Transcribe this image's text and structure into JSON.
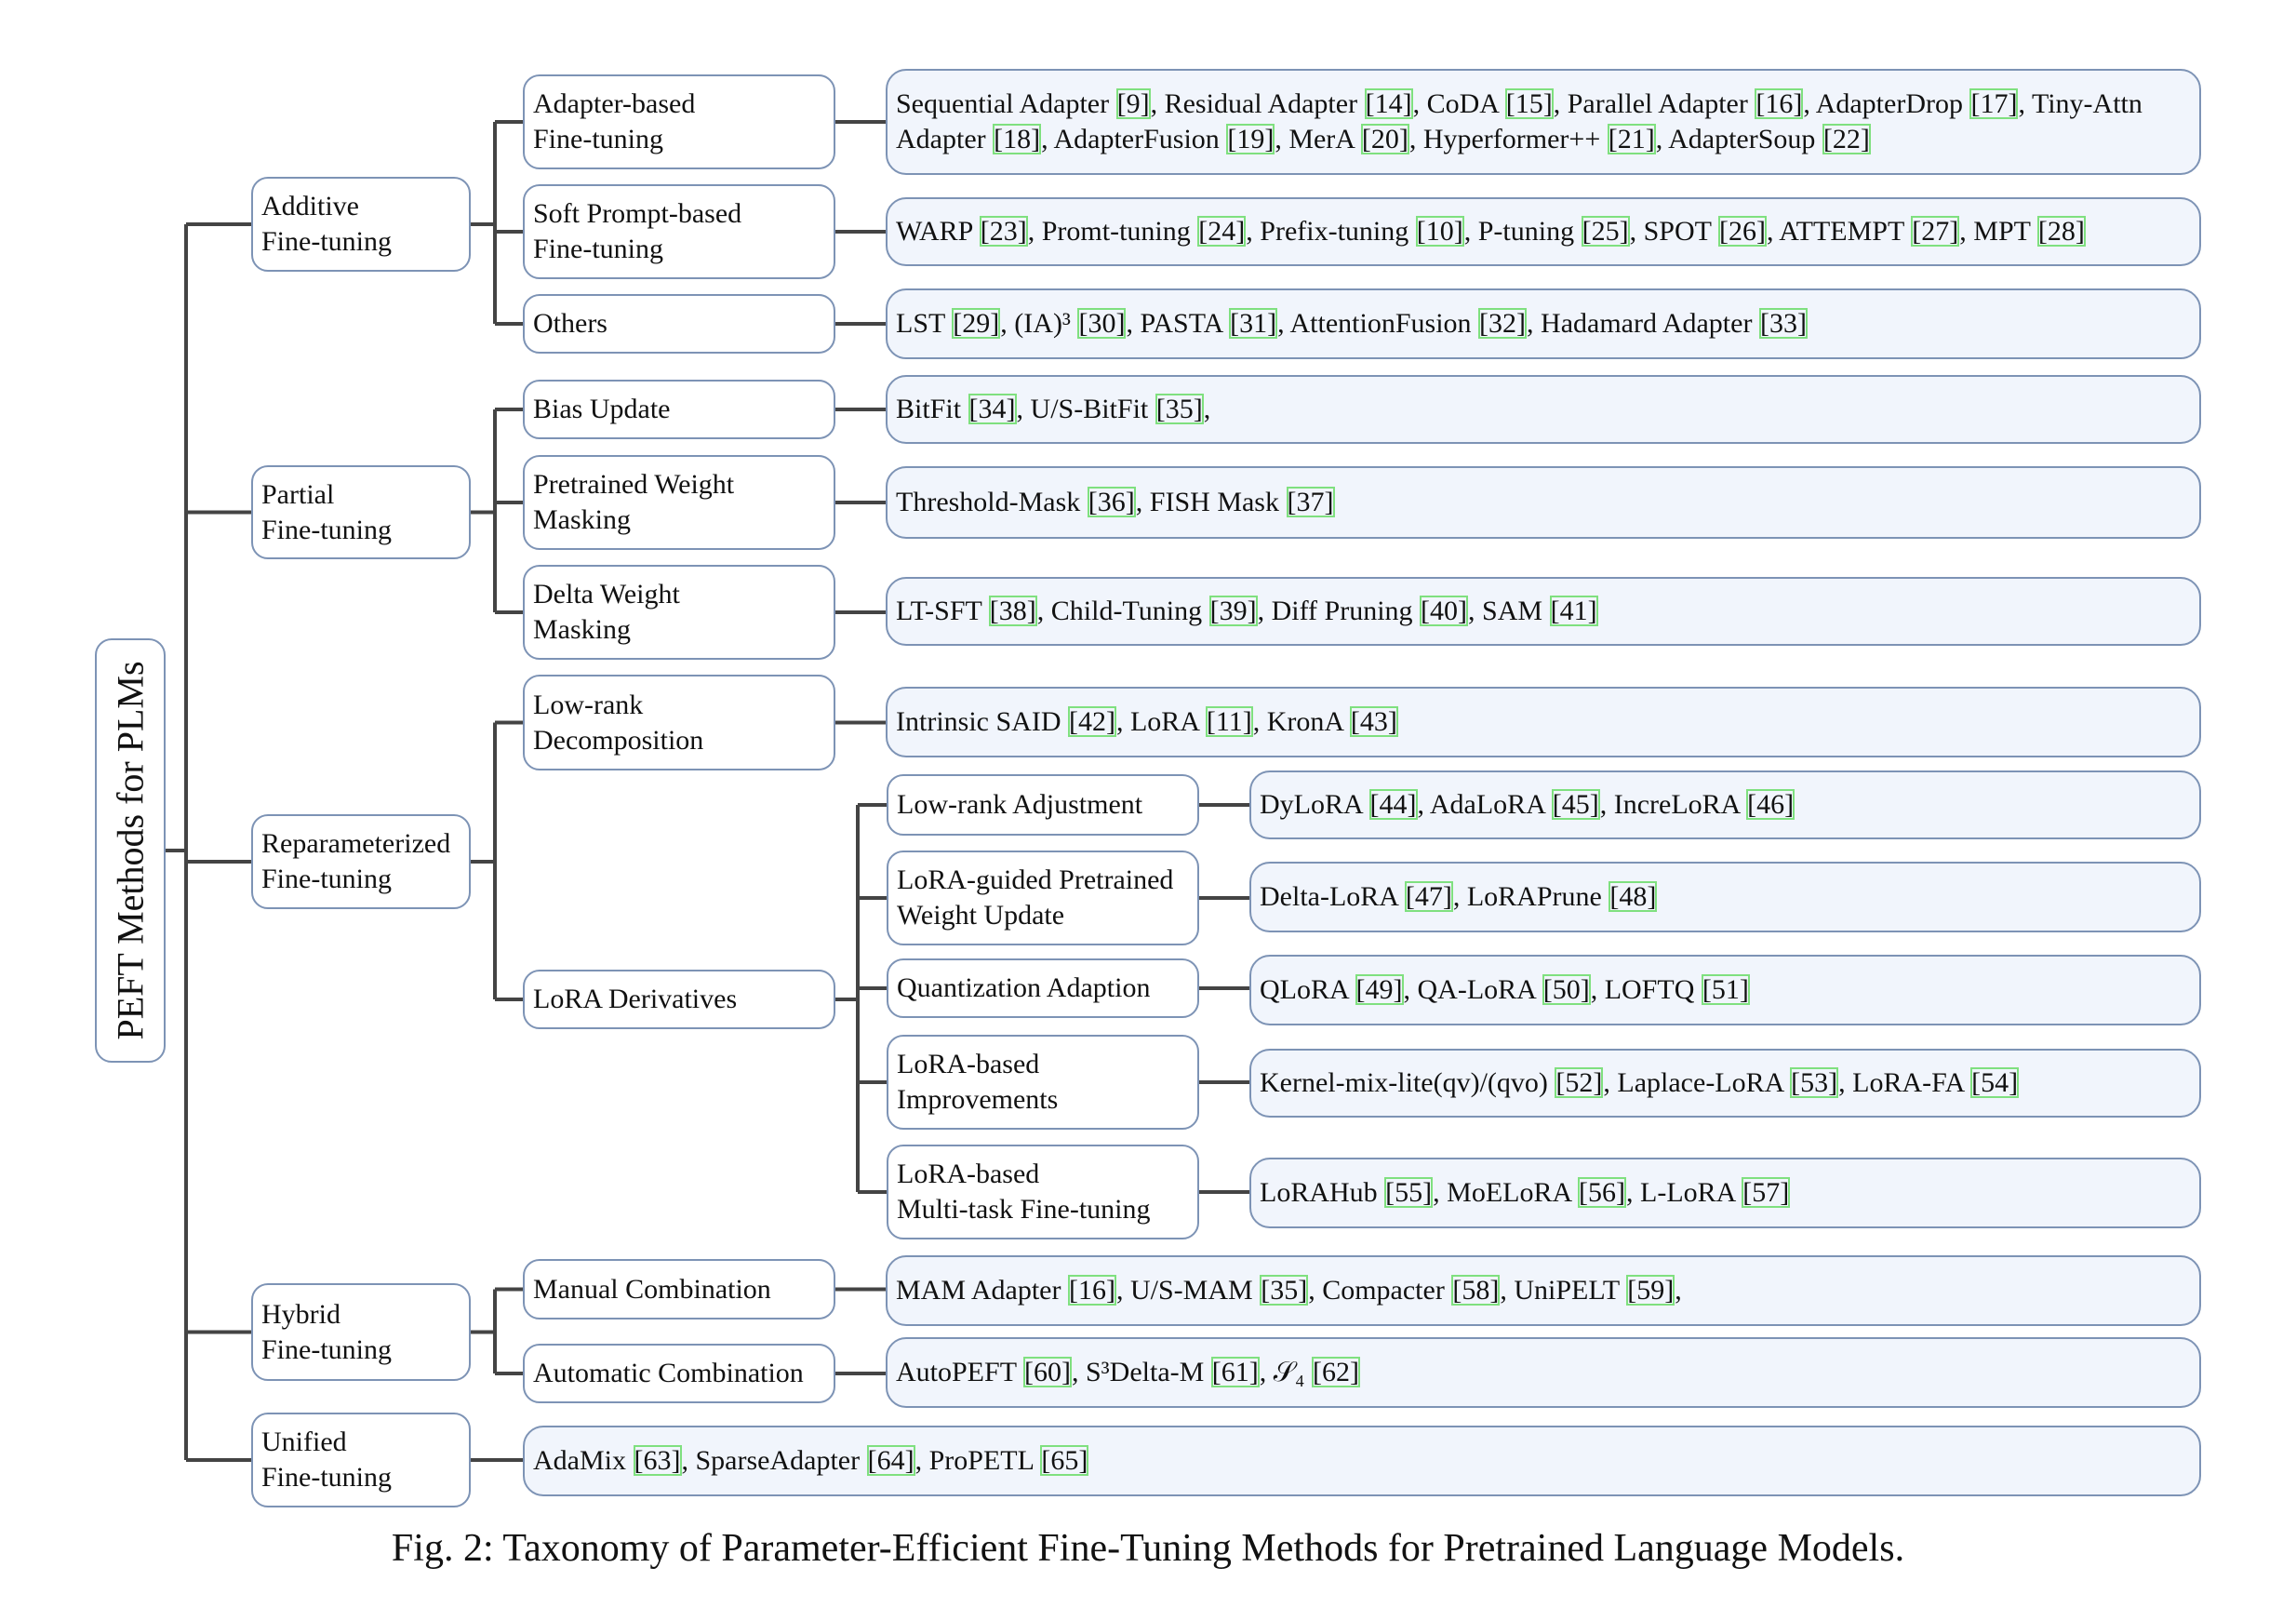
{
  "root": {
    "label": "PEFT Methods for PLMs"
  },
  "categories": [
    {
      "label": "Additive\nFine-tuning",
      "subs": [
        {
          "label": "Adapter-based\nFine-tuning",
          "methods": [
            [
              "Sequential Adapter",
              "9"
            ],
            [
              "Residual Adapter",
              "14"
            ],
            [
              "CoDA",
              "15"
            ],
            [
              "Parallel Adapter",
              "16"
            ],
            [
              "AdapterDrop",
              "17"
            ],
            [
              "Tiny-Attn Adapter",
              "18"
            ],
            [
              "AdapterFusion",
              "19"
            ],
            [
              "MerA",
              "20"
            ],
            [
              "Hyperformer++",
              "21"
            ],
            [
              "AdapterSoup",
              "22"
            ]
          ]
        },
        {
          "label": "Soft Prompt-based\nFine-tuning",
          "methods": [
            [
              "WARP",
              "23"
            ],
            [
              "Promt-tuning",
              "24"
            ],
            [
              "Prefix-tuning",
              "10"
            ],
            [
              "P-tuning",
              "25"
            ],
            [
              "SPOT",
              "26"
            ],
            [
              "ATTEMPT",
              "27"
            ],
            [
              "MPT",
              "28"
            ]
          ]
        },
        {
          "label": "Others",
          "methods": [
            [
              "LST",
              "29"
            ],
            [
              "(IA)³",
              "30"
            ],
            [
              "PASTA",
              "31"
            ],
            [
              "AttentionFusion",
              "32"
            ],
            [
              "Hadamard Adapter",
              "33"
            ]
          ]
        }
      ]
    },
    {
      "label": "Partial\nFine-tuning",
      "subs": [
        {
          "label": "Bias Update",
          "trailing": ",",
          "methods": [
            [
              "BitFit",
              "34"
            ],
            [
              "U/S-BitFit",
              "35"
            ]
          ]
        },
        {
          "label": "Pretrained Weight\nMasking",
          "methods": [
            [
              "Threshold-Mask",
              "36"
            ],
            [
              "FISH Mask",
              "37"
            ]
          ]
        },
        {
          "label": "Delta Weight\nMasking",
          "methods": [
            [
              "LT-SFT",
              "38"
            ],
            [
              "Child-Tuning",
              "39"
            ],
            [
              "Diff Pruning",
              "40"
            ],
            [
              "SAM",
              "41"
            ]
          ]
        }
      ]
    },
    {
      "label": "Reparameterized\nFine-tuning",
      "subs": [
        {
          "label": "Low-rank\nDecomposition",
          "methods": [
            [
              "Intrinsic SAID",
              "42"
            ],
            [
              "LoRA",
              "11"
            ],
            [
              "KronA",
              "43"
            ]
          ]
        },
        {
          "label": "LoRA Derivatives",
          "subs": [
            {
              "label": "Low-rank Adjustment",
              "methods": [
                [
                  "DyLoRA",
                  "44"
                ],
                [
                  "AdaLoRA",
                  "45"
                ],
                [
                  "IncreLoRA",
                  "46"
                ]
              ]
            },
            {
              "label": "LoRA-guided Pretrained\nWeight Update",
              "methods": [
                [
                  "Delta-LoRA",
                  "47"
                ],
                [
                  "LoRAPrune",
                  "48"
                ]
              ]
            },
            {
              "label": "Quantization Adaption",
              "methods": [
                [
                  "QLoRA",
                  "49"
                ],
                [
                  "QA-LoRA",
                  "50"
                ],
                [
                  "LOFTQ",
                  "51"
                ]
              ]
            },
            {
              "label": "LoRA-based\nImprovements",
              "methods": [
                [
                  "Kernel-mix-lite(qv)/(qvo)",
                  "52"
                ],
                [
                  "Laplace-LoRA",
                  "53"
                ],
                [
                  "LoRA-FA",
                  "54"
                ]
              ]
            },
            {
              "label": "LoRA-based\nMulti-task Fine-tuning",
              "methods": [
                [
                  "LoRAHub",
                  "55"
                ],
                [
                  "MoELoRA",
                  "56"
                ],
                [
                  "L-LoRA",
                  "57"
                ]
              ]
            }
          ]
        }
      ]
    },
    {
      "label": "Hybrid\nFine-tuning",
      "subs": [
        {
          "label": "Manual Combination",
          "trailing": ",",
          "methods": [
            [
              "MAM Adapter",
              "16"
            ],
            [
              "U/S-MAM",
              "35"
            ],
            [
              "Compacter",
              "58"
            ],
            [
              "UniPELT",
              "59"
            ]
          ]
        },
        {
          "label": "Automatic Combination",
          "methods": [
            [
              "AutoPEFT",
              "60"
            ],
            [
              "S³Delta-M",
              "61"
            ],
            [
              "𝒮₄",
              "62"
            ]
          ]
        }
      ]
    },
    {
      "label": "Unified\nFine-tuning",
      "methods": [
        [
          "AdaMix",
          "63"
        ],
        [
          "SparseAdapter",
          "64"
        ],
        [
          "ProPETL",
          "65"
        ]
      ]
    }
  ],
  "caption": "Fig. 2: Taxonomy of Parameter-Efficient Fine-Tuning Methods for Pretrained Language Models.",
  "colors": {
    "box_border": "#7d93b5",
    "leaf_fill": "#f1f5fc",
    "connector": "#444444",
    "citation_outline": "#7fe07f"
  }
}
